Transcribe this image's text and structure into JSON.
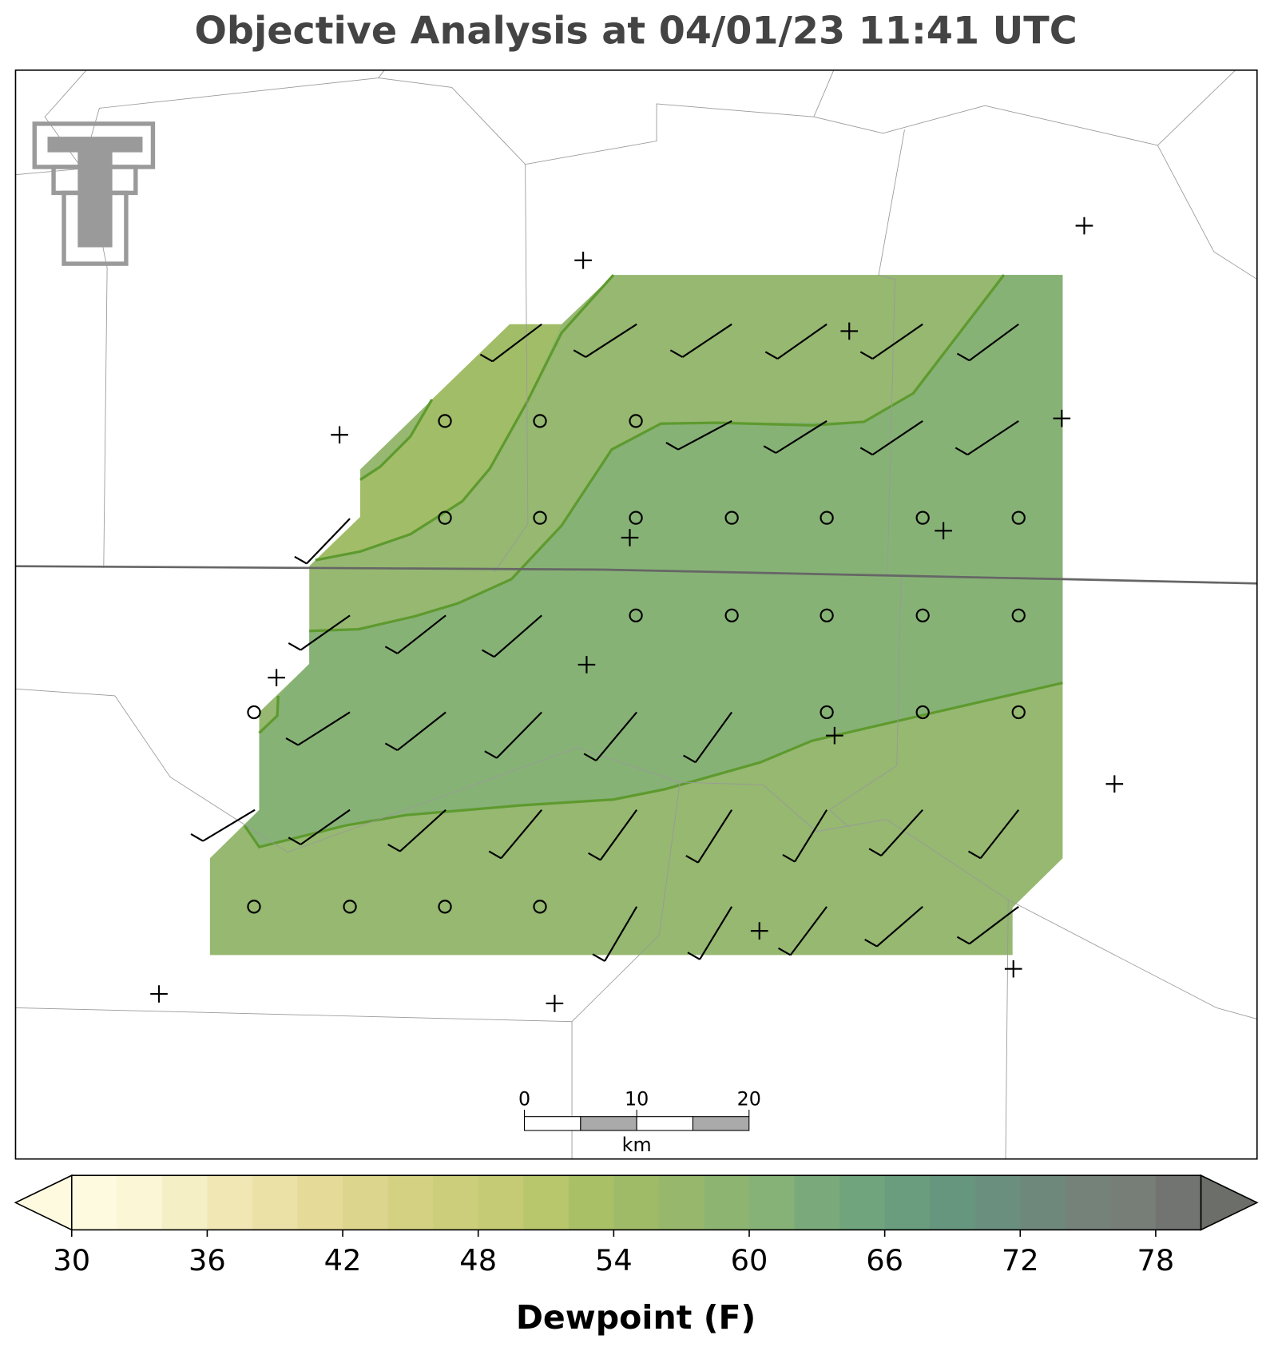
{
  "title": "Objective Analysis at 04/01/23 11:41 UTC",
  "colorbar": {
    "label": "Dewpoint (F)",
    "lim": [
      30,
      80
    ],
    "ticks": [
      30,
      36,
      42,
      48,
      54,
      60,
      66,
      72,
      78
    ],
    "levels": [
      30,
      32,
      34,
      36,
      38,
      40,
      42,
      44,
      46,
      48,
      50,
      52,
      54,
      56,
      58,
      60,
      62,
      64,
      66,
      68,
      70,
      72,
      74,
      76,
      78,
      80
    ],
    "colors": [
      "#fdfae0",
      "#faf6d6",
      "#f5efc6",
      "#f0e7b5",
      "#ebe0a6",
      "#e5da98",
      "#dcd58d",
      "#d4d183",
      "#ccce7b",
      "#c4cb74",
      "#b8c66c",
      "#aac067",
      "#9fbb68",
      "#97b76d",
      "#8eb472",
      "#86b177",
      "#7aaa7b",
      "#6fa47d",
      "#699d7e",
      "#67967f",
      "#6a8f7e",
      "#6f887c",
      "#74827a",
      "#777e77",
      "#717471"
    ],
    "under": "#fdfae0",
    "over": "#6b6e69"
  },
  "scale_bar": {
    "ticks": [
      0,
      10,
      20
    ],
    "unit": "km"
  }
}
